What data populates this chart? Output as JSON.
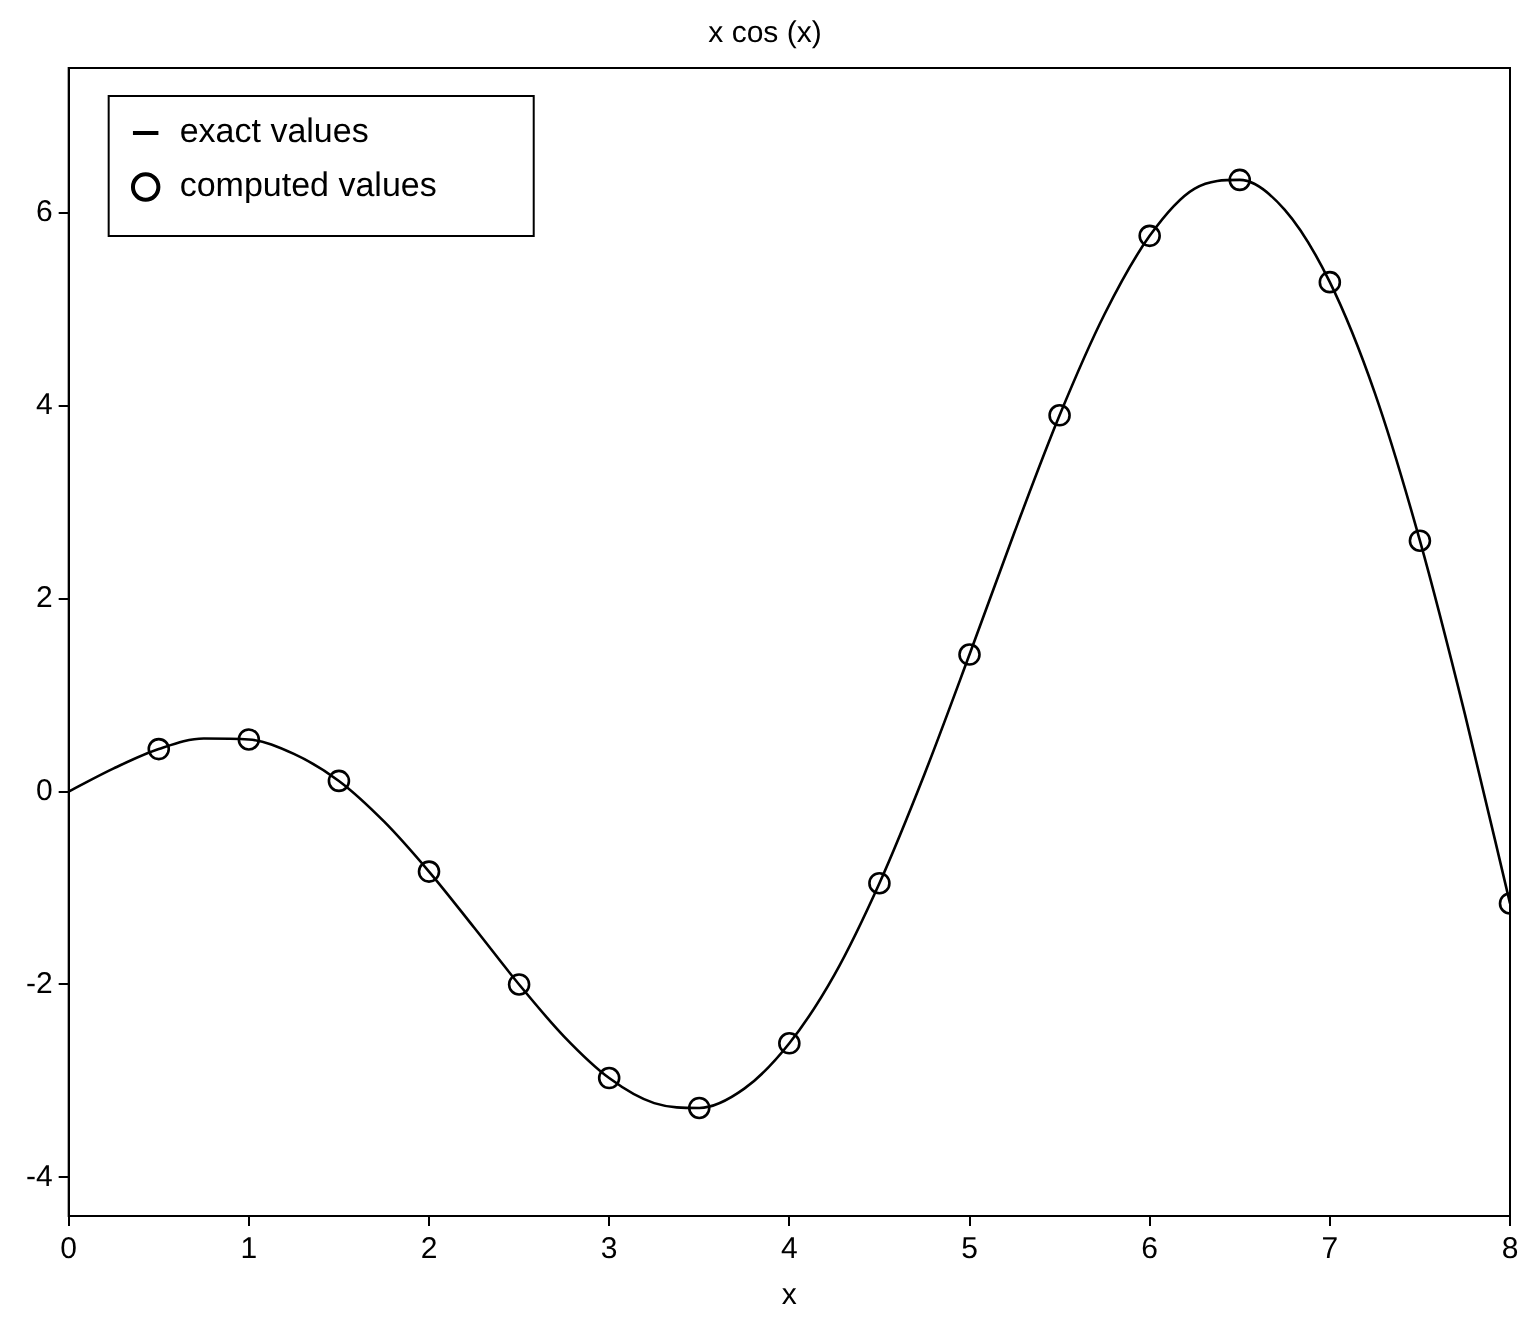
{
  "chart_data": {
    "type": "line",
    "title": "x cos (x)",
    "xlabel": "x",
    "xlim": [
      0,
      8
    ],
    "xticks": [
      0,
      1,
      2,
      3,
      4,
      5,
      6,
      7,
      8
    ],
    "ylim": [
      -4.4,
      7.5
    ],
    "yticks": [
      -4,
      -2,
      0,
      2,
      4,
      6
    ],
    "grid": false,
    "legend": "top left",
    "series": [
      {
        "name": "exact values",
        "type": "line",
        "color": "#000000",
        "marker": "none",
        "line_style": "solid",
        "x": [
          0,
          0.25,
          0.5,
          0.75,
          1,
          1.25,
          1.5,
          1.75,
          2,
          2.25,
          2.5,
          2.75,
          3,
          3.25,
          3.5,
          3.75,
          4,
          4.25,
          4.5,
          4.75,
          5,
          5.25,
          5.5,
          5.75,
          6,
          6.25,
          6.5,
          6.75,
          7,
          7.25,
          7.5,
          7.75,
          8
        ],
        "values": [
          0,
          0.24,
          0.44,
          0.55,
          0.54,
          0.39,
          0.11,
          -0.31,
          -0.83,
          -1.41,
          -2.0,
          -2.54,
          -2.97,
          -3.23,
          -3.28,
          -3.08,
          -2.61,
          -1.9,
          -0.95,
          0.18,
          1.42,
          2.69,
          3.9,
          4.95,
          5.76,
          6.25,
          6.34,
          6.03,
          5.28,
          4.13,
          2.6,
          0.8,
          -1.16
        ]
      },
      {
        "name": "computed values",
        "type": "scatter",
        "color": "#000000",
        "marker": "circle",
        "x": [
          0.5,
          1,
          1.5,
          2,
          2.5,
          3,
          3.5,
          4,
          4.5,
          5,
          5.5,
          6,
          6.5,
          7,
          7.5,
          8
        ],
        "values": [
          0.44,
          0.54,
          0.11,
          -0.83,
          -2.0,
          -2.97,
          -3.28,
          -2.61,
          -0.95,
          1.42,
          3.9,
          5.76,
          6.34,
          5.28,
          2.6,
          -1.16
        ]
      }
    ]
  }
}
